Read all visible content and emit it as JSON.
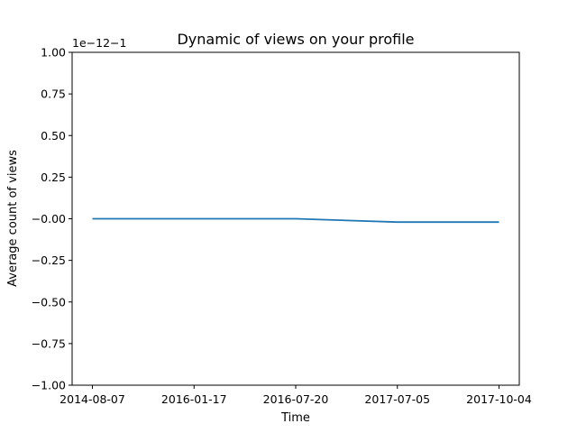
{
  "chart_data": {
    "type": "line",
    "title": "Dynamic of views on your profile",
    "xlabel": "Time",
    "ylabel": "Average count of views",
    "y_offset_label": "1e−12−1",
    "x_tick_labels": [
      "2014-08-07",
      "2016-01-17",
      "2016-07-20",
      "2017-07-05",
      "2017-10-04"
    ],
    "y_ticks": [
      -1.0,
      -0.75,
      -0.5,
      -0.25,
      0.0,
      0.25,
      0.5,
      0.75,
      1.0
    ],
    "y_tick_labels": [
      "−1.00",
      "−0.75",
      "−0.50",
      "−0.25",
      "−0.00",
      "0.25",
      "0.50",
      "0.75",
      "1.00"
    ],
    "ylim": [
      -1.0,
      1.0
    ],
    "grid": false,
    "series": [
      {
        "color": "#1f77b4",
        "x": [
          "2014-08-07",
          "2016-01-17",
          "2016-07-20",
          "2017-07-05",
          "2017-10-04"
        ],
        "values": [
          0.0,
          0.0,
          0.0,
          -0.02,
          -0.02
        ]
      }
    ]
  }
}
